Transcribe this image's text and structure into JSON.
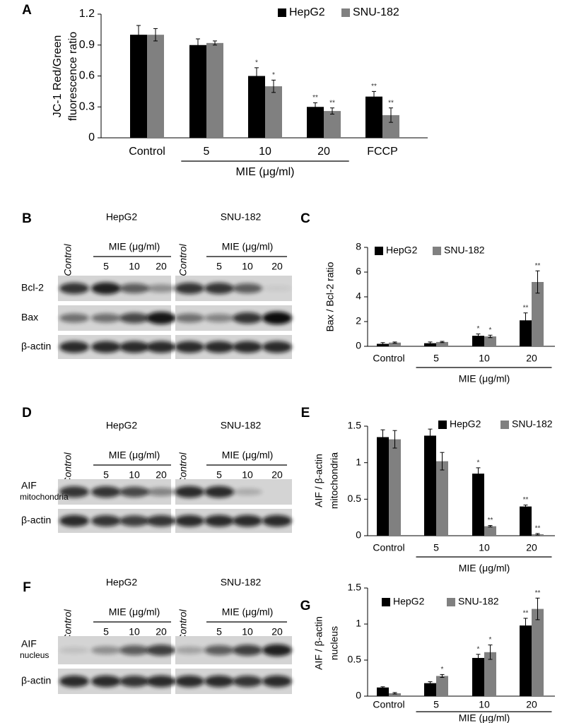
{
  "chart_data": [
    {
      "type": "bar",
      "panel_label": "A",
      "y_label": [
        "JC-1 Red/Green",
        "fluorescence ratio"
      ],
      "categories": [
        "Control",
        "5",
        "10",
        "20",
        "FCCP"
      ],
      "group_label": "MIE (μg/ml)",
      "ylim": [
        0,
        1.2
      ],
      "yticks": [
        0,
        0.3,
        0.6,
        0.9,
        1.2
      ],
      "series": [
        {
          "name": "HepG2",
          "color": "#000000",
          "values": [
            1.0,
            0.9,
            0.6,
            0.3,
            0.4
          ],
          "errors": [
            0.09,
            0.06,
            0.08,
            0.04,
            0.05
          ],
          "significance": [
            null,
            null,
            "*",
            "**",
            "**"
          ]
        },
        {
          "name": "SNU-182",
          "color": "#808080",
          "values": [
            1.0,
            0.92,
            0.5,
            0.26,
            0.22
          ],
          "errors": [
            0.06,
            0.02,
            0.06,
            0.03,
            0.07
          ],
          "significance": [
            null,
            null,
            "*",
            "**",
            "**"
          ]
        }
      ]
    },
    {
      "type": "bar",
      "panel_label": "C",
      "y_label": [
        "Bax / Bcl-2 ratio"
      ],
      "categories": [
        "Control",
        "5",
        "10",
        "20"
      ],
      "group_label": "MIE (μg/ml)",
      "ylim": [
        0,
        8
      ],
      "yticks": [
        0,
        2,
        4,
        6,
        8
      ],
      "series": [
        {
          "name": "HepG2",
          "color": "#000000",
          "values": [
            0.2,
            0.25,
            0.85,
            2.1
          ],
          "errors": [
            0.1,
            0.1,
            0.15,
            0.6
          ],
          "significance": [
            null,
            null,
            "*",
            "**"
          ]
        },
        {
          "name": "SNU-182",
          "color": "#808080",
          "values": [
            0.3,
            0.35,
            0.8,
            5.2
          ],
          "errors": [
            0.05,
            0.05,
            0.1,
            0.9
          ],
          "significance": [
            null,
            null,
            "*",
            "**"
          ]
        }
      ]
    },
    {
      "type": "bar",
      "panel_label": "E",
      "y_label": [
        "AIF / β-actin",
        "mitochondria"
      ],
      "categories": [
        "Control",
        "5",
        "10",
        "20"
      ],
      "group_label": "MIE (μg/ml)",
      "ylim": [
        0,
        1.5
      ],
      "yticks": [
        0,
        0.5,
        1,
        1.5
      ],
      "series": [
        {
          "name": "HepG2",
          "color": "#000000",
          "values": [
            1.35,
            1.37,
            0.85,
            0.4
          ],
          "errors": [
            0.1,
            0.09,
            0.08,
            0.02
          ],
          "significance": [
            null,
            null,
            "*",
            "**"
          ]
        },
        {
          "name": "SNU-182",
          "color": "#808080",
          "values": [
            1.32,
            1.02,
            0.13,
            0.02
          ],
          "errors": [
            0.12,
            0.12,
            0.01,
            0.01
          ],
          "significance": [
            null,
            null,
            "**",
            "**"
          ]
        }
      ]
    },
    {
      "type": "bar",
      "panel_label": "G",
      "y_label": [
        "AIF / β-actin",
        "nucleus"
      ],
      "categories": [
        "Control",
        "5",
        "10",
        "20"
      ],
      "group_label": "MIE (μg/ml)",
      "ylim": [
        0,
        1.5
      ],
      "yticks": [
        0,
        0.5,
        1,
        1.5
      ],
      "series": [
        {
          "name": "HepG2",
          "color": "#000000",
          "values": [
            0.12,
            0.18,
            0.53,
            0.98
          ],
          "errors": [
            0.01,
            0.02,
            0.05,
            0.1
          ],
          "significance": [
            null,
            null,
            "*",
            "**"
          ]
        },
        {
          "name": "SNU-182",
          "color": "#808080",
          "values": [
            0.04,
            0.28,
            0.61,
            1.21
          ],
          "errors": [
            0.01,
            0.02,
            0.1,
            0.15
          ],
          "significance": [
            null,
            "*",
            "*",
            "**"
          ]
        }
      ]
    }
  ],
  "blots": [
    {
      "panel_label": "B",
      "groups": [
        {
          "name": "HepG2",
          "control_label": "Control",
          "treatment_label": "MIE (μg/ml)",
          "doses": [
            "5",
            "10",
            "20"
          ]
        },
        {
          "name": "SNU-182",
          "control_label": "Control",
          "treatment_label": "MIE (μg/ml)",
          "doses": [
            "5",
            "10",
            "20"
          ]
        }
      ],
      "rows": [
        {
          "label": "Bcl-2"
        },
        {
          "label": "Bax"
        },
        {
          "label": "β-actin"
        }
      ]
    },
    {
      "panel_label": "D",
      "groups": [
        {
          "name": "HepG2",
          "control_label": "Control",
          "treatment_label": "MIE (μg/ml)",
          "doses": [
            "5",
            "10",
            "20"
          ]
        },
        {
          "name": "SNU-182",
          "control_label": "Control",
          "treatment_label": "MIE (μg/ml)",
          "doses": [
            "5",
            "10",
            "20"
          ]
        }
      ],
      "rows": [
        {
          "label": "AIF",
          "sublabel": "mitochondria"
        },
        {
          "label": "β-actin"
        }
      ]
    },
    {
      "panel_label": "F",
      "groups": [
        {
          "name": "HepG2",
          "control_label": "Control",
          "treatment_label": "MIE (μg/ml)",
          "doses": [
            "5",
            "10",
            "20"
          ]
        },
        {
          "name": "SNU-182",
          "control_label": "Control",
          "treatment_label": "MIE (μg/ml)",
          "doses": [
            "5",
            "10",
            "20"
          ]
        }
      ],
      "rows": [
        {
          "label": "AIF",
          "sublabel": "nucleus"
        },
        {
          "label": "β-actin"
        }
      ]
    }
  ]
}
